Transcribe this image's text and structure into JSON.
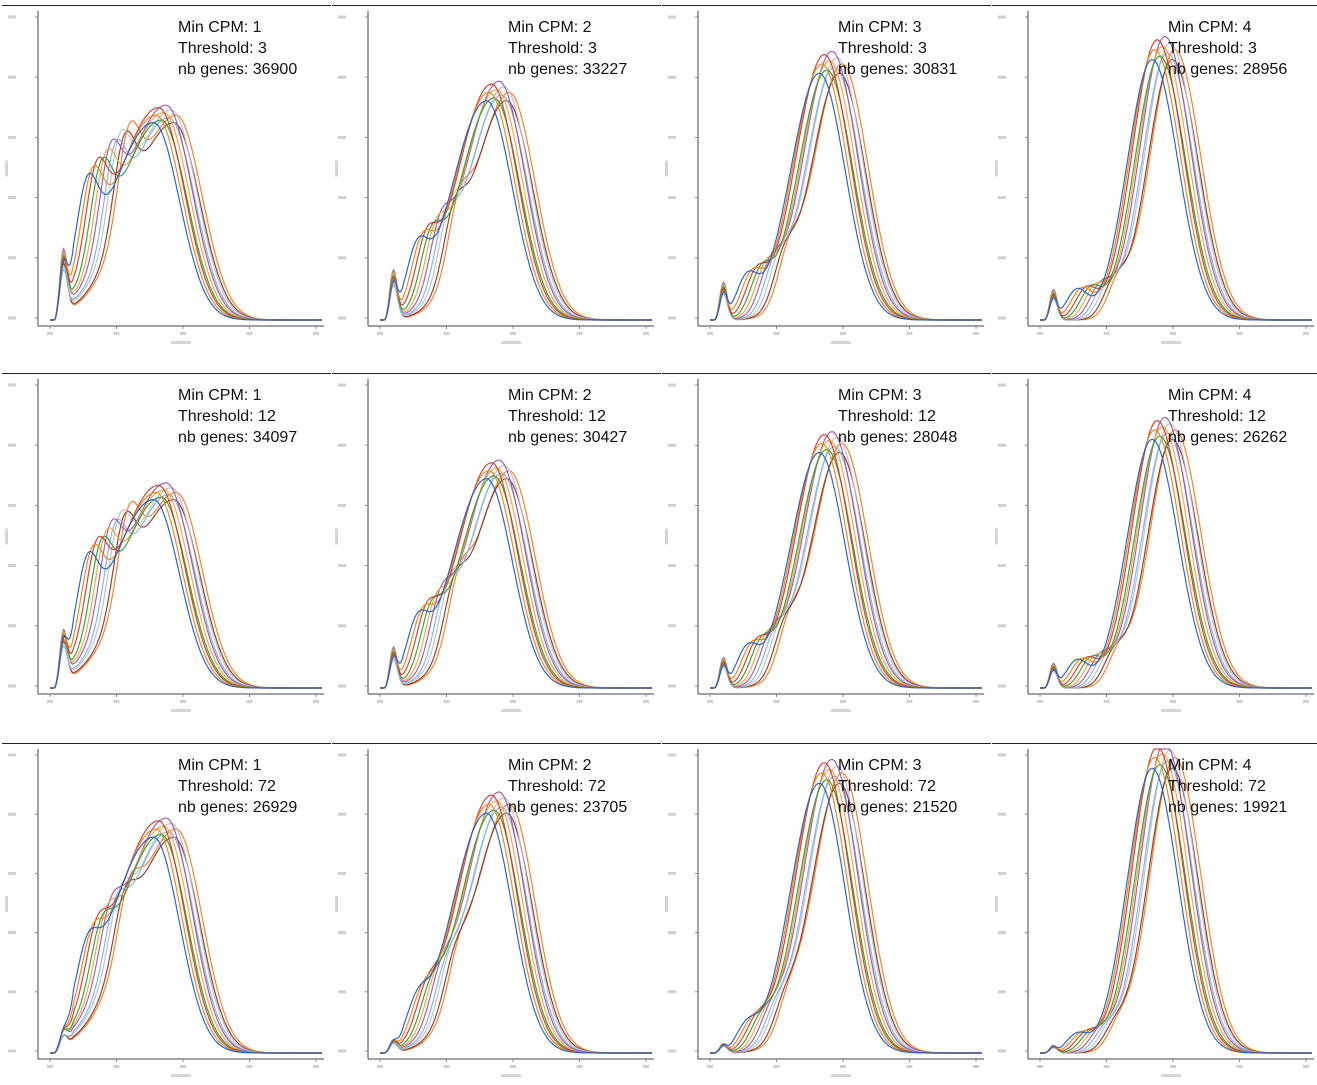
{
  "chart_data": {
    "type": "line",
    "layout": {
      "rows": 3,
      "columns": 4
    },
    "curves_per_panel": 10,
    "series_colors": [
      "#1f5fd1",
      "#e8860f",
      "#d43a2a",
      "#2f9e3b",
      "#f2a23a",
      "#9c5ab0",
      "#7fb2ea",
      "#c0c0c0",
      "#8b3a2a",
      "#f07c25"
    ],
    "panels": [
      {
        "min_cpm": 1,
        "threshold": 3,
        "nb_genes": 36900,
        "labels": [
          "Min CPM: 1",
          "Threshold: 3",
          "nb genes: 36900"
        ]
      },
      {
        "min_cpm": 2,
        "threshold": 3,
        "nb_genes": 33227,
        "labels": [
          "Min CPM: 2",
          "Threshold: 3",
          "nb genes: 33227"
        ]
      },
      {
        "min_cpm": 3,
        "threshold": 3,
        "nb_genes": 30831,
        "labels": [
          "Min CPM: 3",
          "Threshold: 3",
          "nb genes: 30831"
        ]
      },
      {
        "min_cpm": 4,
        "threshold": 3,
        "nb_genes": 28956,
        "labels": [
          "Min CPM: 4",
          "Threshold: 3",
          "nb genes: 28956"
        ]
      },
      {
        "min_cpm": 1,
        "threshold": 12,
        "nb_genes": 34097,
        "labels": [
          "Min CPM: 1",
          "Threshold: 12",
          "nb genes: 34097"
        ]
      },
      {
        "min_cpm": 2,
        "threshold": 12,
        "nb_genes": 30427,
        "labels": [
          "Min CPM: 2",
          "Threshold: 12",
          "nb genes: 30427"
        ]
      },
      {
        "min_cpm": 3,
        "threshold": 12,
        "nb_genes": 28048,
        "labels": [
          "Min CPM: 3",
          "Threshold: 12",
          "nb genes: 28048"
        ]
      },
      {
        "min_cpm": 4,
        "threshold": 12,
        "nb_genes": 26262,
        "labels": [
          "Min CPM: 4",
          "Threshold: 12",
          "nb genes: 26262"
        ]
      },
      {
        "min_cpm": 1,
        "threshold": 72,
        "nb_genes": 26929,
        "labels": [
          "Min CPM: 1",
          "Threshold: 72",
          "nb genes: 26929"
        ]
      },
      {
        "min_cpm": 2,
        "threshold": 72,
        "nb_genes": 23705,
        "labels": [
          "Min CPM: 2",
          "Threshold: 72",
          "nb genes: 23705"
        ]
      },
      {
        "min_cpm": 3,
        "threshold": 72,
        "nb_genes": 21520,
        "labels": [
          "Min CPM: 3",
          "Threshold: 72",
          "nb genes: 21520"
        ]
      },
      {
        "min_cpm": 4,
        "threshold": 72,
        "nb_genes": 19921,
        "labels": [
          "Min CPM: 4",
          "Threshold: 72",
          "nb genes: 19921"
        ]
      }
    ]
  }
}
